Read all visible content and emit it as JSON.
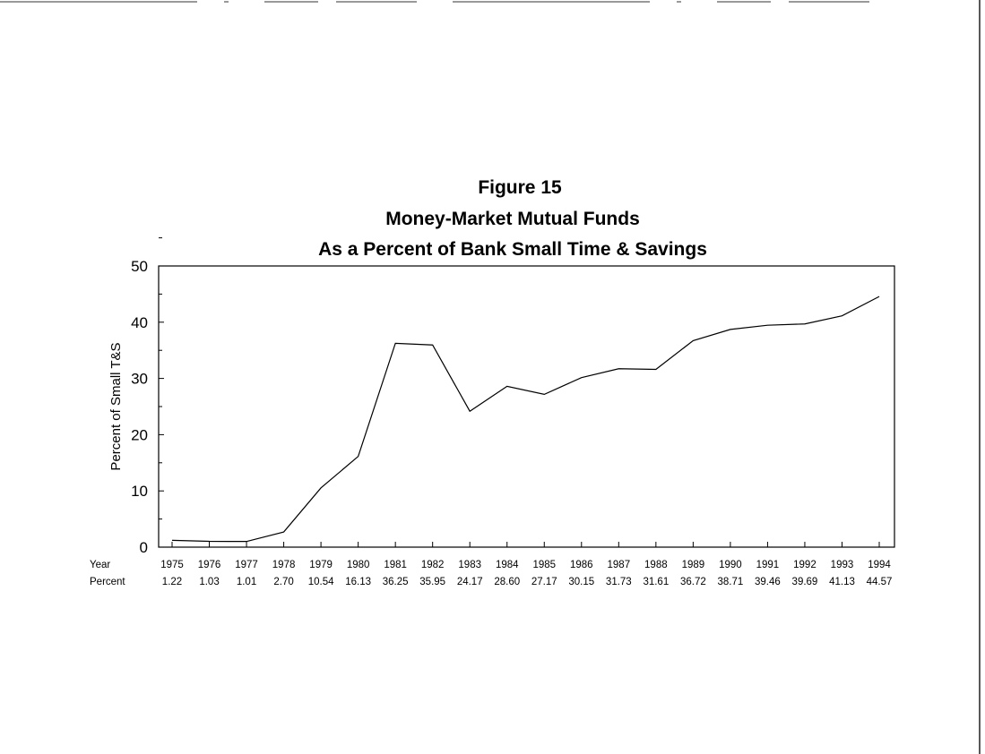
{
  "chart_data": {
    "type": "line",
    "figure_label": "Figure 15",
    "title": "Money-Market Mutual Funds",
    "subtitle": "As a Percent of Bank Small Time & Savings",
    "xlabel": "",
    "ylabel": "Percent of Small T&S",
    "ylim": [
      0,
      50
    ],
    "yticks": [
      0,
      10,
      20,
      30,
      40,
      50
    ],
    "grid": false,
    "table_row_labels": {
      "year": "Year",
      "percent": "Percent"
    },
    "x": [
      1975,
      1976,
      1977,
      1978,
      1979,
      1980,
      1981,
      1982,
      1983,
      1984,
      1985,
      1986,
      1987,
      1988,
      1989,
      1990,
      1991,
      1992,
      1993,
      1994
    ],
    "values": [
      1.22,
      1.03,
      1.01,
      2.7,
      10.54,
      16.13,
      36.25,
      35.95,
      24.17,
      28.6,
      27.17,
      30.15,
      31.73,
      31.61,
      36.72,
      38.71,
      39.46,
      39.69,
      41.13,
      44.57
    ],
    "value_labels": [
      "1.22",
      "1.03",
      "1.01",
      "2.70",
      "10.54",
      "16.13",
      "36.25",
      "35.95",
      "24.17",
      "28.60",
      "27.17",
      "30.15",
      "31.73",
      "31.61",
      "36.72",
      "38.71",
      "39.46",
      "39.69",
      "41.13",
      "44.57"
    ]
  }
}
